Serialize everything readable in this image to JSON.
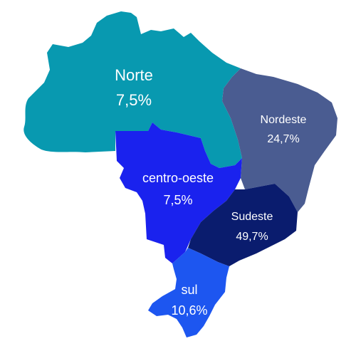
{
  "regions": [
    {
      "id": "norte",
      "name": "Norte",
      "value": "7,5%",
      "color": "#0899B0"
    },
    {
      "id": "nordeste",
      "name": "Nordeste",
      "value": "24,7%",
      "color": "#4A5C91"
    },
    {
      "id": "centro_oeste",
      "name": "centro-oeste",
      "value": "7,5%",
      "color": "#1A22EE"
    },
    {
      "id": "sudeste",
      "name": "Sudeste",
      "value": "49,7%",
      "color": "#0A1C6E"
    },
    {
      "id": "sul",
      "name": "sul",
      "value": "10,6%",
      "color": "#1D56F0"
    }
  ]
}
